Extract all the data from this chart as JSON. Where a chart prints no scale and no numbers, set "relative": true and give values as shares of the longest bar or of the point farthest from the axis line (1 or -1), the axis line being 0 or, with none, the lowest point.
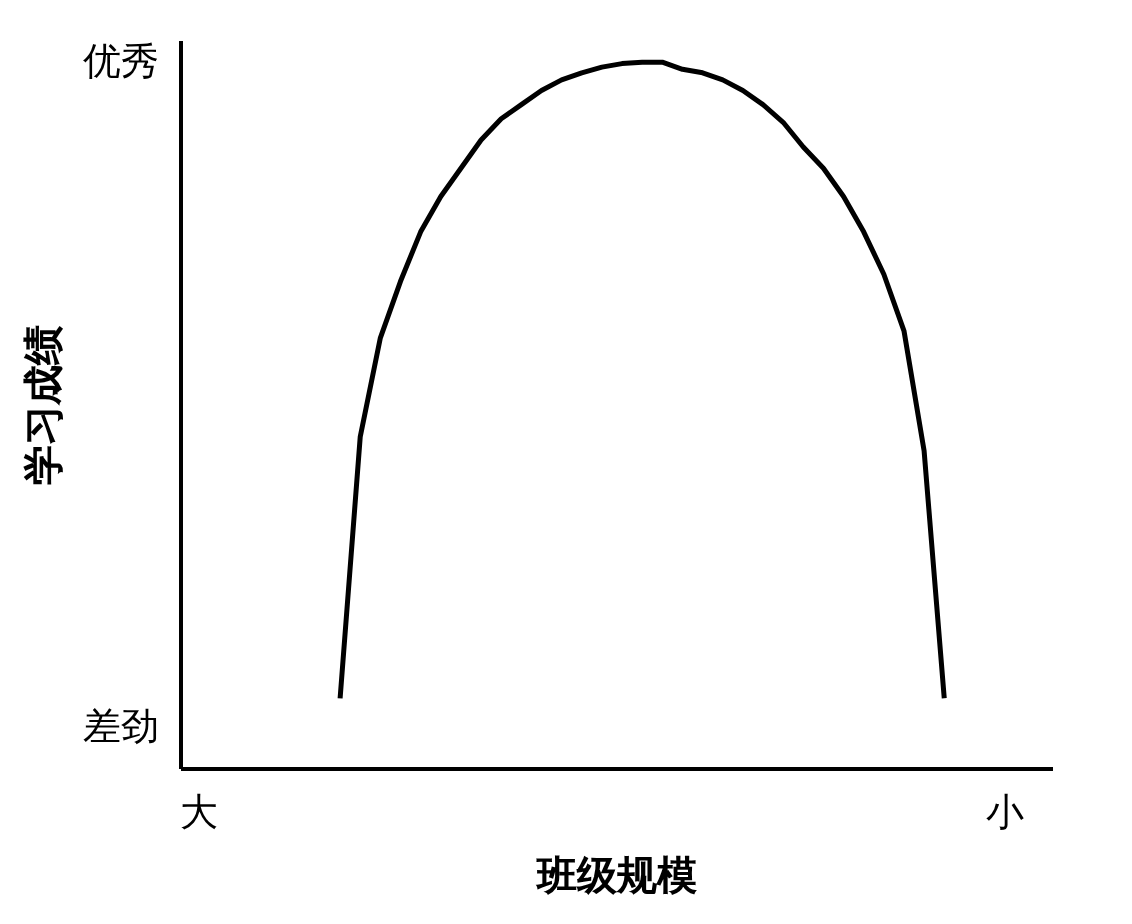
{
  "chart_data": {
    "type": "line",
    "relative": true,
    "xlabel": "班级规模",
    "ylabel": "学习成绩",
    "annotations": [
      "优秀",
      "差劲"
    ],
    "categories": [
      "大",
      null,
      null,
      null,
      null,
      null,
      null,
      null,
      null,
      null,
      null,
      null,
      null,
      null,
      null,
      null,
      null,
      null,
      null,
      null,
      null,
      null,
      null,
      null,
      null,
      null,
      null,
      null,
      null,
      null,
      null,
      null,
      null,
      null,
      null,
      null,
      null,
      null,
      null,
      null,
      "小"
    ],
    "series": [
      {
        "color": "#000000",
        "values": [
          null,
          null,
          null,
          null,
          null,
          null,
          null,
          0.1,
          0.47,
          0.61,
          0.69,
          0.76,
          0.81,
          0.85,
          0.89,
          0.92,
          0.94,
          0.96,
          0.975,
          0.985,
          0.993,
          0.998,
          1.0,
          1.0,
          0.99,
          0.985,
          0.975,
          0.96,
          0.94,
          0.915,
          0.88,
          0.85,
          0.81,
          0.76,
          0.7,
          0.62,
          0.45,
          0.1,
          null,
          null,
          null
        ]
      }
    ],
    "grid": false,
    "line_style": "solid"
  }
}
